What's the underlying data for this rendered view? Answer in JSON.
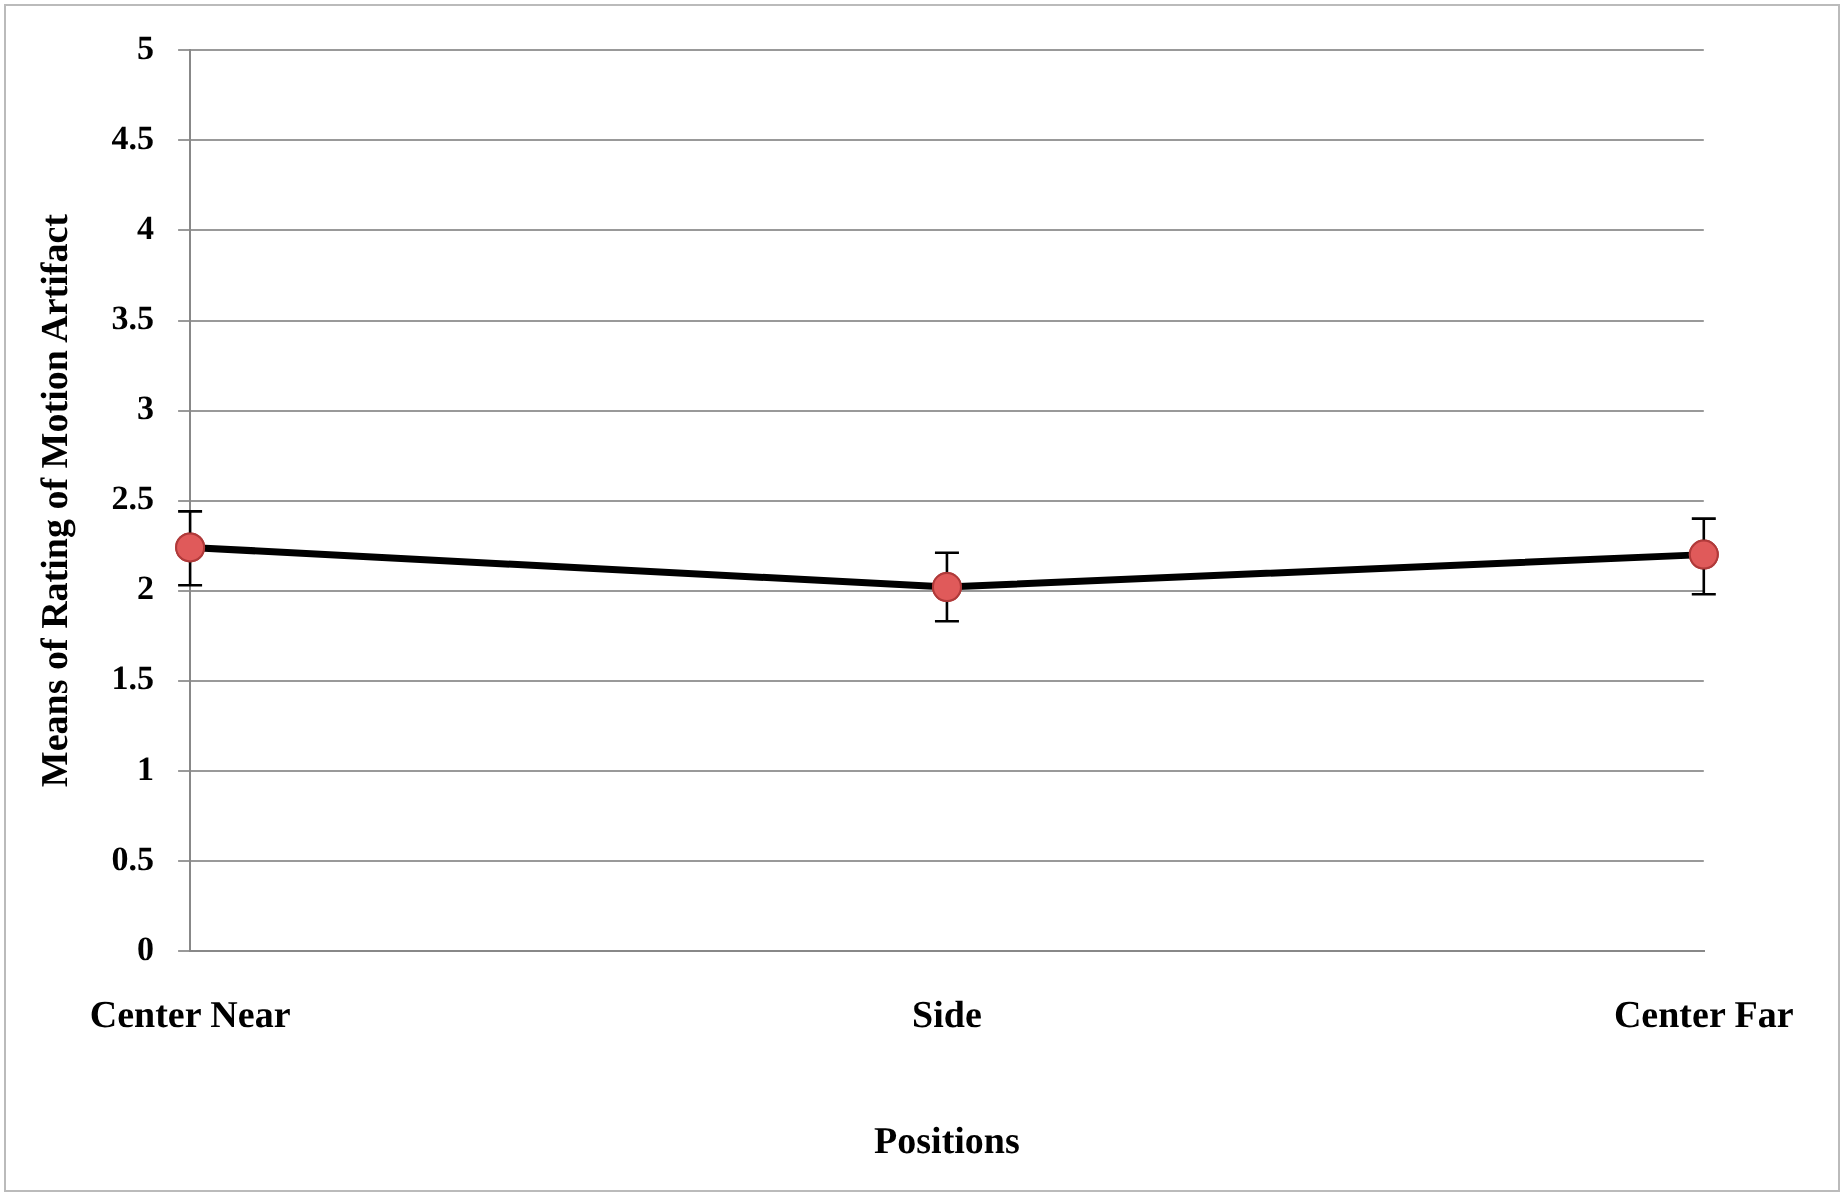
{
  "chart_data": {
    "type": "line",
    "xlabel": "Positions",
    "ylabel": "Means of Rating of Motion Artifact",
    "categories": [
      "Center Near",
      "Side",
      "Center Far"
    ],
    "series": [
      {
        "color": "#000000",
        "values": [
          2.24,
          2.02,
          2.2
        ],
        "errors": [
          [
            2.03,
            2.44
          ],
          [
            1.83,
            2.21
          ],
          [
            1.98,
            2.4
          ]
        ]
      }
    ],
    "ylim": [
      0,
      5
    ],
    "yticks": [
      0,
      0.5,
      1,
      1.5,
      2,
      2.5,
      3,
      3.5,
      4,
      4.5,
      5
    ],
    "grid": "y",
    "legend": false,
    "marker": "circle",
    "line_style": "solid"
  }
}
